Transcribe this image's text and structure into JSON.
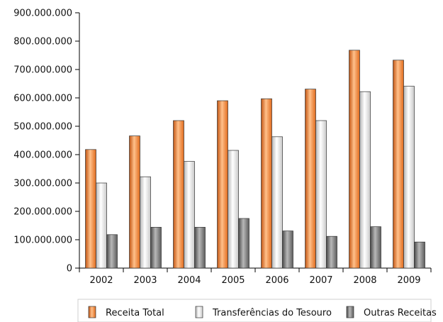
{
  "chart_data": {
    "type": "bar",
    "categories": [
      "2002",
      "2003",
      "2004",
      "2005",
      "2006",
      "2007",
      "2008",
      "2009"
    ],
    "series": [
      {
        "name": "Receita Total",
        "values": [
          418000000,
          466000000,
          520000000,
          590000000,
          597000000,
          631000000,
          768000000,
          733000000
        ]
      },
      {
        "name": "Transferências do Tesouro",
        "values": [
          300000000,
          322000000,
          376000000,
          415000000,
          463000000,
          520000000,
          622000000,
          641000000
        ]
      },
      {
        "name": "Outras Receitas",
        "values": [
          118000000,
          144000000,
          144000000,
          175000000,
          131000000,
          112000000,
          146000000,
          92000000
        ]
      }
    ],
    "ylim": [
      0,
      900000000
    ],
    "yticks": [
      "0",
      "100.000.000",
      "200.000.000",
      "300.000.000",
      "400.000.000",
      "500.000.000",
      "600.000.000",
      "700.000.000",
      "800.000.000",
      "900.000.000"
    ],
    "grid": false,
    "legend_position": "bottom",
    "colors": {
      "Receita Total": "#f28a3a",
      "Transferências do Tesouro": "#e9e9e9",
      "Outras Receitas": "#8c8c8c"
    }
  }
}
